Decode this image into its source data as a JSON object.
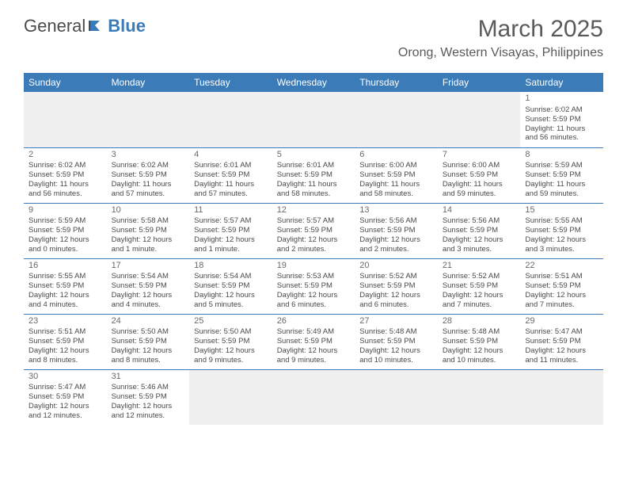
{
  "logo": {
    "text1": "General",
    "text2": "Blue"
  },
  "title": "March 2025",
  "location": "Orong, Western Visayas, Philippines",
  "colors": {
    "header_bg": "#3b7bb8",
    "header_text": "#ffffff",
    "text": "#4a4a4a",
    "empty_bg": "#f0f0f0",
    "divider": "#3b7bb8"
  },
  "day_headers": [
    "Sunday",
    "Monday",
    "Tuesday",
    "Wednesday",
    "Thursday",
    "Friday",
    "Saturday"
  ],
  "weeks": [
    [
      null,
      null,
      null,
      null,
      null,
      null,
      {
        "n": "1",
        "sr": "Sunrise: 6:02 AM",
        "ss": "Sunset: 5:59 PM",
        "dl": "Daylight: 11 hours and 56 minutes."
      }
    ],
    [
      {
        "n": "2",
        "sr": "Sunrise: 6:02 AM",
        "ss": "Sunset: 5:59 PM",
        "dl": "Daylight: 11 hours and 56 minutes."
      },
      {
        "n": "3",
        "sr": "Sunrise: 6:02 AM",
        "ss": "Sunset: 5:59 PM",
        "dl": "Daylight: 11 hours and 57 minutes."
      },
      {
        "n": "4",
        "sr": "Sunrise: 6:01 AM",
        "ss": "Sunset: 5:59 PM",
        "dl": "Daylight: 11 hours and 57 minutes."
      },
      {
        "n": "5",
        "sr": "Sunrise: 6:01 AM",
        "ss": "Sunset: 5:59 PM",
        "dl": "Daylight: 11 hours and 58 minutes."
      },
      {
        "n": "6",
        "sr": "Sunrise: 6:00 AM",
        "ss": "Sunset: 5:59 PM",
        "dl": "Daylight: 11 hours and 58 minutes."
      },
      {
        "n": "7",
        "sr": "Sunrise: 6:00 AM",
        "ss": "Sunset: 5:59 PM",
        "dl": "Daylight: 11 hours and 59 minutes."
      },
      {
        "n": "8",
        "sr": "Sunrise: 5:59 AM",
        "ss": "Sunset: 5:59 PM",
        "dl": "Daylight: 11 hours and 59 minutes."
      }
    ],
    [
      {
        "n": "9",
        "sr": "Sunrise: 5:59 AM",
        "ss": "Sunset: 5:59 PM",
        "dl": "Daylight: 12 hours and 0 minutes."
      },
      {
        "n": "10",
        "sr": "Sunrise: 5:58 AM",
        "ss": "Sunset: 5:59 PM",
        "dl": "Daylight: 12 hours and 1 minute."
      },
      {
        "n": "11",
        "sr": "Sunrise: 5:57 AM",
        "ss": "Sunset: 5:59 PM",
        "dl": "Daylight: 12 hours and 1 minute."
      },
      {
        "n": "12",
        "sr": "Sunrise: 5:57 AM",
        "ss": "Sunset: 5:59 PM",
        "dl": "Daylight: 12 hours and 2 minutes."
      },
      {
        "n": "13",
        "sr": "Sunrise: 5:56 AM",
        "ss": "Sunset: 5:59 PM",
        "dl": "Daylight: 12 hours and 2 minutes."
      },
      {
        "n": "14",
        "sr": "Sunrise: 5:56 AM",
        "ss": "Sunset: 5:59 PM",
        "dl": "Daylight: 12 hours and 3 minutes."
      },
      {
        "n": "15",
        "sr": "Sunrise: 5:55 AM",
        "ss": "Sunset: 5:59 PM",
        "dl": "Daylight: 12 hours and 3 minutes."
      }
    ],
    [
      {
        "n": "16",
        "sr": "Sunrise: 5:55 AM",
        "ss": "Sunset: 5:59 PM",
        "dl": "Daylight: 12 hours and 4 minutes."
      },
      {
        "n": "17",
        "sr": "Sunrise: 5:54 AM",
        "ss": "Sunset: 5:59 PM",
        "dl": "Daylight: 12 hours and 4 minutes."
      },
      {
        "n": "18",
        "sr": "Sunrise: 5:54 AM",
        "ss": "Sunset: 5:59 PM",
        "dl": "Daylight: 12 hours and 5 minutes."
      },
      {
        "n": "19",
        "sr": "Sunrise: 5:53 AM",
        "ss": "Sunset: 5:59 PM",
        "dl": "Daylight: 12 hours and 6 minutes."
      },
      {
        "n": "20",
        "sr": "Sunrise: 5:52 AM",
        "ss": "Sunset: 5:59 PM",
        "dl": "Daylight: 12 hours and 6 minutes."
      },
      {
        "n": "21",
        "sr": "Sunrise: 5:52 AM",
        "ss": "Sunset: 5:59 PM",
        "dl": "Daylight: 12 hours and 7 minutes."
      },
      {
        "n": "22",
        "sr": "Sunrise: 5:51 AM",
        "ss": "Sunset: 5:59 PM",
        "dl": "Daylight: 12 hours and 7 minutes."
      }
    ],
    [
      {
        "n": "23",
        "sr": "Sunrise: 5:51 AM",
        "ss": "Sunset: 5:59 PM",
        "dl": "Daylight: 12 hours and 8 minutes."
      },
      {
        "n": "24",
        "sr": "Sunrise: 5:50 AM",
        "ss": "Sunset: 5:59 PM",
        "dl": "Daylight: 12 hours and 8 minutes."
      },
      {
        "n": "25",
        "sr": "Sunrise: 5:50 AM",
        "ss": "Sunset: 5:59 PM",
        "dl": "Daylight: 12 hours and 9 minutes."
      },
      {
        "n": "26",
        "sr": "Sunrise: 5:49 AM",
        "ss": "Sunset: 5:59 PM",
        "dl": "Daylight: 12 hours and 9 minutes."
      },
      {
        "n": "27",
        "sr": "Sunrise: 5:48 AM",
        "ss": "Sunset: 5:59 PM",
        "dl": "Daylight: 12 hours and 10 minutes."
      },
      {
        "n": "28",
        "sr": "Sunrise: 5:48 AM",
        "ss": "Sunset: 5:59 PM",
        "dl": "Daylight: 12 hours and 10 minutes."
      },
      {
        "n": "29",
        "sr": "Sunrise: 5:47 AM",
        "ss": "Sunset: 5:59 PM",
        "dl": "Daylight: 12 hours and 11 minutes."
      }
    ],
    [
      {
        "n": "30",
        "sr": "Sunrise: 5:47 AM",
        "ss": "Sunset: 5:59 PM",
        "dl": "Daylight: 12 hours and 12 minutes."
      },
      {
        "n": "31",
        "sr": "Sunrise: 5:46 AM",
        "ss": "Sunset: 5:59 PM",
        "dl": "Daylight: 12 hours and 12 minutes."
      },
      null,
      null,
      null,
      null,
      null
    ]
  ]
}
